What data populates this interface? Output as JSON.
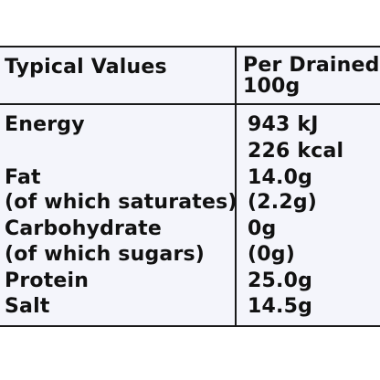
{
  "nutrition_table": {
    "header": {
      "left": "Typical Values",
      "right_line1": "Per Drained",
      "right_line2": "100g"
    },
    "rows": [
      {
        "label": "Energy",
        "value": "943 kJ"
      },
      {
        "label": "",
        "value": "226 kcal"
      },
      {
        "label": "Fat",
        "value": "14.0g"
      },
      {
        "label": "(of which saturates)",
        "value": "(2.2g)"
      },
      {
        "label": "Carbohydrate",
        "value": "0g"
      },
      {
        "label": "(of which sugars)",
        "value": "(0g)"
      },
      {
        "label": "Protein",
        "value": "25.0g"
      },
      {
        "label": "Salt",
        "value": "14.5g"
      }
    ]
  },
  "colors": {
    "panel_background": "#f4f5fb",
    "rule_color": "#1a1a1a",
    "text_color": "#111111"
  }
}
